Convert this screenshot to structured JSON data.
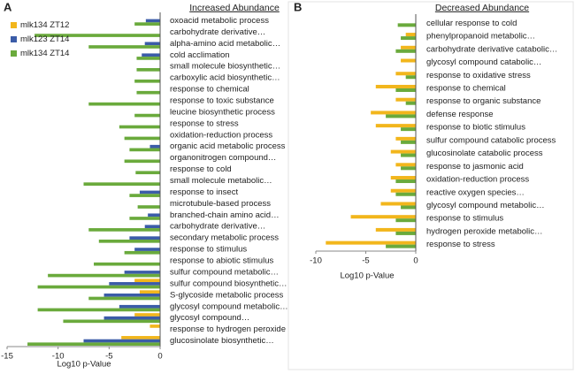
{
  "chart_data": [
    {
      "type": "hbar",
      "panel": "A",
      "title": "Increased Abundance",
      "x_label": "Log10 p-Value",
      "categories": [
        "oxoacid metabolic process",
        "carbohydrate derivative…",
        "alpha-amino acid metabolic…",
        "cold acclimation",
        "small molecule biosynthetic…",
        "carboxylic acid biosynthetic…",
        "response to chemical",
        "response to toxic substance",
        "leucine biosynthetic process",
        "response to stress",
        "oxidation-reduction process",
        "organic acid metabolic process",
        "organonitrogen compound…",
        "response to cold",
        "small molecule metabolic…",
        "response to insect",
        "microtubule-based process",
        "branched-chain amino acid…",
        "carbohydrate derivative…",
        "secondary metabolic process",
        "response to stimulus",
        "response to abiotic stimulus",
        "sulfur compound metabolic…",
        "sulfur compound biosynthetic…",
        "S-glycoside metabolic process",
        "glycosyl compound metabolic…",
        "glycosyl compound…",
        "response to hydrogen peroxide",
        "glucosinolate biosynthetic…"
      ],
      "series": [
        {
          "name": "mlk134 ZT12",
          "color": "#f2b61c",
          "values": [
            0,
            0,
            0,
            0,
            0,
            0,
            0,
            0,
            0,
            0,
            0,
            0,
            0,
            0,
            0,
            0,
            0,
            0,
            0,
            0,
            0,
            0,
            0,
            -2.5,
            -2,
            0,
            -2.5,
            -1,
            -3.8
          ]
        },
        {
          "name": "mlk123 ZT14",
          "color": "#3b5ca8",
          "values": [
            -1.4,
            0,
            -1.5,
            -1.8,
            0,
            0,
            0,
            0,
            0,
            0,
            0,
            -1,
            0,
            0,
            0,
            -2,
            0,
            -1.2,
            -1.5,
            -3,
            -2.5,
            0,
            -3.5,
            -5,
            -5.5,
            -4,
            -5.5,
            0,
            -7.5
          ]
        },
        {
          "name": "mlk134 ZT14",
          "color": "#6aaa3c",
          "values": [
            -2.5,
            -12.3,
            -7,
            -2.3,
            -2.3,
            -2.5,
            -2.3,
            -7,
            -2.5,
            -4,
            -3.5,
            -3,
            -3.5,
            -2.4,
            -7.5,
            -3,
            -2.2,
            -3,
            -7,
            -6,
            -3.5,
            -6.5,
            -11,
            -12,
            -7,
            -12,
            -9.5,
            0,
            -13
          ]
        }
      ],
      "xlim": [
        -15,
        0
      ],
      "xticks": [
        -15,
        -10,
        -5,
        0
      ],
      "legend": "top-left"
    },
    {
      "type": "hbar",
      "panel": "B",
      "title": "Decreased Abundance",
      "x_label": "Log10 p-Value",
      "categories": [
        "cellular response to cold",
        "phenylpropanoid metabolic…",
        "carbohydrate derivative catabolic…",
        "glycosyl compound catabolic…",
        "response to oxidative stress",
        "response to chemical",
        "response to organic substance",
        "defense response",
        "response to biotic stimulus",
        "sulfur compound catabolic process",
        "glucosinolate catabolic process",
        "response to jasmonic acid",
        "oxidation-reduction process",
        "reactive oxygen species…",
        "glycosyl compound metabolic…",
        "response to stimulus",
        "hydrogen peroxide metabolic…",
        "response to stress"
      ],
      "series": [
        {
          "color": "#f2b61c",
          "values": [
            0,
            -1,
            -1.5,
            -1.5,
            -2,
            -4,
            -2,
            -4.5,
            -4,
            -2,
            -2.5,
            -2,
            -2.5,
            -2.5,
            -3.5,
            -6.5,
            -4,
            -9
          ]
        },
        {
          "color": "#6aaa3c",
          "values": [
            -1.8,
            -1.5,
            -2,
            0,
            -1,
            -2,
            -1,
            -3,
            -1.5,
            -1.5,
            -1.5,
            -1.5,
            -2,
            -2,
            -1.5,
            -2,
            -2,
            -3
          ]
        }
      ],
      "xlim": [
        -10,
        0
      ],
      "xticks": [
        -10,
        -5,
        0
      ]
    }
  ]
}
